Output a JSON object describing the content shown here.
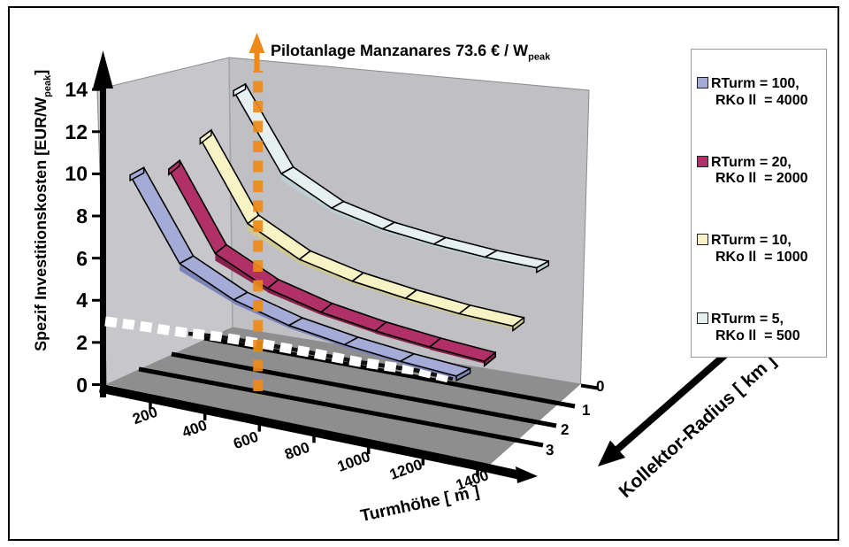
{
  "title": {
    "text": "Pilotanlage Manzanares 73.6 € / W",
    "sub": "peak"
  },
  "y_axis": {
    "title": "Spezif Investitionskosten [EUR/W",
    "title_sub": "peak",
    "title_suffix": "]",
    "ticks": [
      "0",
      "2",
      "4",
      "6",
      "8",
      "10",
      "12",
      "14"
    ]
  },
  "x_axis": {
    "title": "Turmhöhe [ m ]",
    "ticks": [
      "200",
      "400",
      "600",
      "800",
      "1000",
      "1200",
      "1400"
    ]
  },
  "depth_axis": {
    "title": "Kollektor-Radius [ km ]",
    "ticks": [
      "0",
      "1",
      "2",
      "3"
    ]
  },
  "legend": {
    "items": [
      {
        "line1": "RTurm = 100,",
        "line2": "RKo ll  = 4000",
        "color": "#a4abd6"
      },
      {
        "line1": "RTurm = 20,",
        "line2": "RKo ll  = 2000",
        "color": "#b13067"
      },
      {
        "line1": "RTurm = 10,",
        "line2": "RKo ll  = 1000",
        "color": "#f7f3c4"
      },
      {
        "line1": "RTurm = 5,",
        "line2": "RKo ll  = 500",
        "color": "#e7f0f1"
      }
    ]
  },
  "chart_data": {
    "type": "ribbon-3d",
    "title": "Pilotanlage Manzanares 73.6 €/Wpeak",
    "xlabel": "Turmhöhe [ m ]",
    "ylabel": "Spezif Investitionskosten [EUR/Wpeak]",
    "zlabel": "Kollektor-Radius [ km ]",
    "categories": [
      200,
      400,
      600,
      800,
      1000,
      1200,
      1400
    ],
    "ylim": [
      0,
      14
    ],
    "depth_ticks": [
      0,
      1,
      2,
      3
    ],
    "series": [
      {
        "name": "RTurm = 100, RKoll = 4000",
        "color": "#a4abd6",
        "kollektor_radius_km": 4.0,
        "values": [
          10.1,
          5.6,
          4.0,
          3.0,
          2.35,
          1.85,
          1.45
        ]
      },
      {
        "name": "RTurm = 20, RKoll = 2000",
        "color": "#b13067",
        "kollektor_radius_km": 2.0,
        "values": [
          10.35,
          5.9,
          4.35,
          3.45,
          2.85,
          2.4,
          2.05
        ]
      },
      {
        "name": "RTurm = 10, RKoll = 1000",
        "color": "#f7f3c4",
        "kollektor_radius_km": 1.0,
        "values": [
          11.95,
          7.75,
          6.2,
          5.4,
          4.85,
          4.4,
          4.1
        ]
      },
      {
        "name": "RTurm = 5, RKoll = 500",
        "color": "#e7f0f1",
        "kollektor_radius_km": 0.5,
        "values": [
          14.0,
          10.45,
          9.05,
          8.25,
          7.7,
          7.25,
          6.9
        ]
      }
    ],
    "annotations": {
      "pilot_value_eur_per_wpeak": 73.6,
      "pilot_label": "Pilotanlage Manzanares 73.6 € / Wpeak",
      "dashed_reference_value": 3
    }
  }
}
